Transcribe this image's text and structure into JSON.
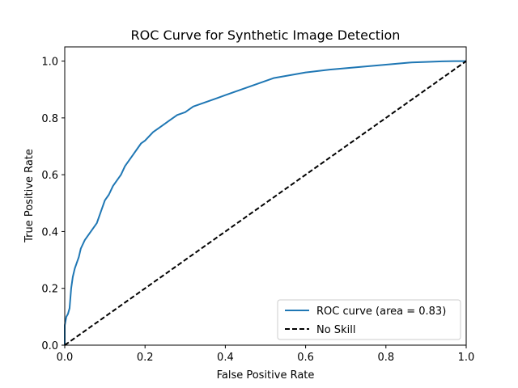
{
  "chart_data": {
    "type": "line",
    "title": "ROC Curve for Synthetic Image Detection",
    "xlabel": "False Positive Rate",
    "ylabel": "True Positive Rate",
    "xlim": [
      0.0,
      1.0
    ],
    "ylim": [
      0.0,
      1.05
    ],
    "xticks": [
      "0.0",
      "0.2",
      "0.4",
      "0.6",
      "0.8",
      "1.0"
    ],
    "yticks": [
      "0.0",
      "0.2",
      "0.4",
      "0.6",
      "0.8",
      "1.0"
    ],
    "grid": false,
    "legend_position": "bottom-right",
    "series": [
      {
        "name": "ROC curve (area = 0.83)",
        "color": "#1f77b4",
        "style": "solid",
        "x": [
          0.0,
          0.0,
          0.004,
          0.008,
          0.012,
          0.016,
          0.02,
          0.025,
          0.03,
          0.035,
          0.04,
          0.05,
          0.06,
          0.07,
          0.08,
          0.09,
          0.1,
          0.11,
          0.12,
          0.13,
          0.14,
          0.15,
          0.16,
          0.17,
          0.18,
          0.19,
          0.2,
          0.22,
          0.24,
          0.26,
          0.28,
          0.3,
          0.32,
          0.34,
          0.36,
          0.38,
          0.4,
          0.42,
          0.44,
          0.46,
          0.48,
          0.5,
          0.52,
          0.54,
          0.56,
          0.58,
          0.6,
          0.63,
          0.66,
          0.7,
          0.74,
          0.78,
          0.82,
          0.86,
          0.9,
          0.94,
          0.97,
          1.0
        ],
        "y": [
          0.0,
          0.07,
          0.1,
          0.11,
          0.13,
          0.2,
          0.24,
          0.27,
          0.29,
          0.31,
          0.34,
          0.37,
          0.39,
          0.41,
          0.43,
          0.47,
          0.51,
          0.53,
          0.56,
          0.58,
          0.6,
          0.63,
          0.65,
          0.67,
          0.69,
          0.71,
          0.72,
          0.75,
          0.77,
          0.79,
          0.81,
          0.82,
          0.84,
          0.85,
          0.86,
          0.87,
          0.88,
          0.89,
          0.9,
          0.91,
          0.92,
          0.93,
          0.94,
          0.945,
          0.95,
          0.955,
          0.96,
          0.965,
          0.97,
          0.975,
          0.98,
          0.985,
          0.99,
          0.995,
          0.997,
          0.999,
          1.0,
          1.0
        ]
      },
      {
        "name": "No Skill",
        "color": "#000000",
        "style": "dashed",
        "x": [
          0.0,
          1.0
        ],
        "y": [
          0.0,
          1.0
        ]
      }
    ]
  }
}
